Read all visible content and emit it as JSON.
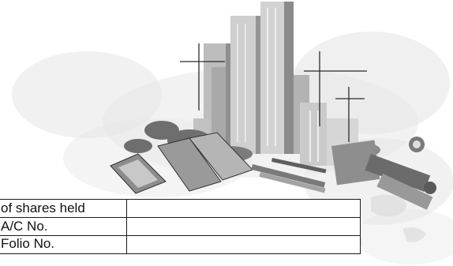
{
  "form": {
    "rows": [
      {
        "label": "of shares held",
        "value": ""
      },
      {
        "label": "A/C No.",
        "value": ""
      },
      {
        "label": "Folio No.",
        "value": ""
      }
    ]
  },
  "illustration": {
    "subject": "city skyline with steel products",
    "colors": {
      "ink": "#1a1a1a",
      "grey": "#9a9a9a",
      "light": "#d9d9d9"
    }
  }
}
